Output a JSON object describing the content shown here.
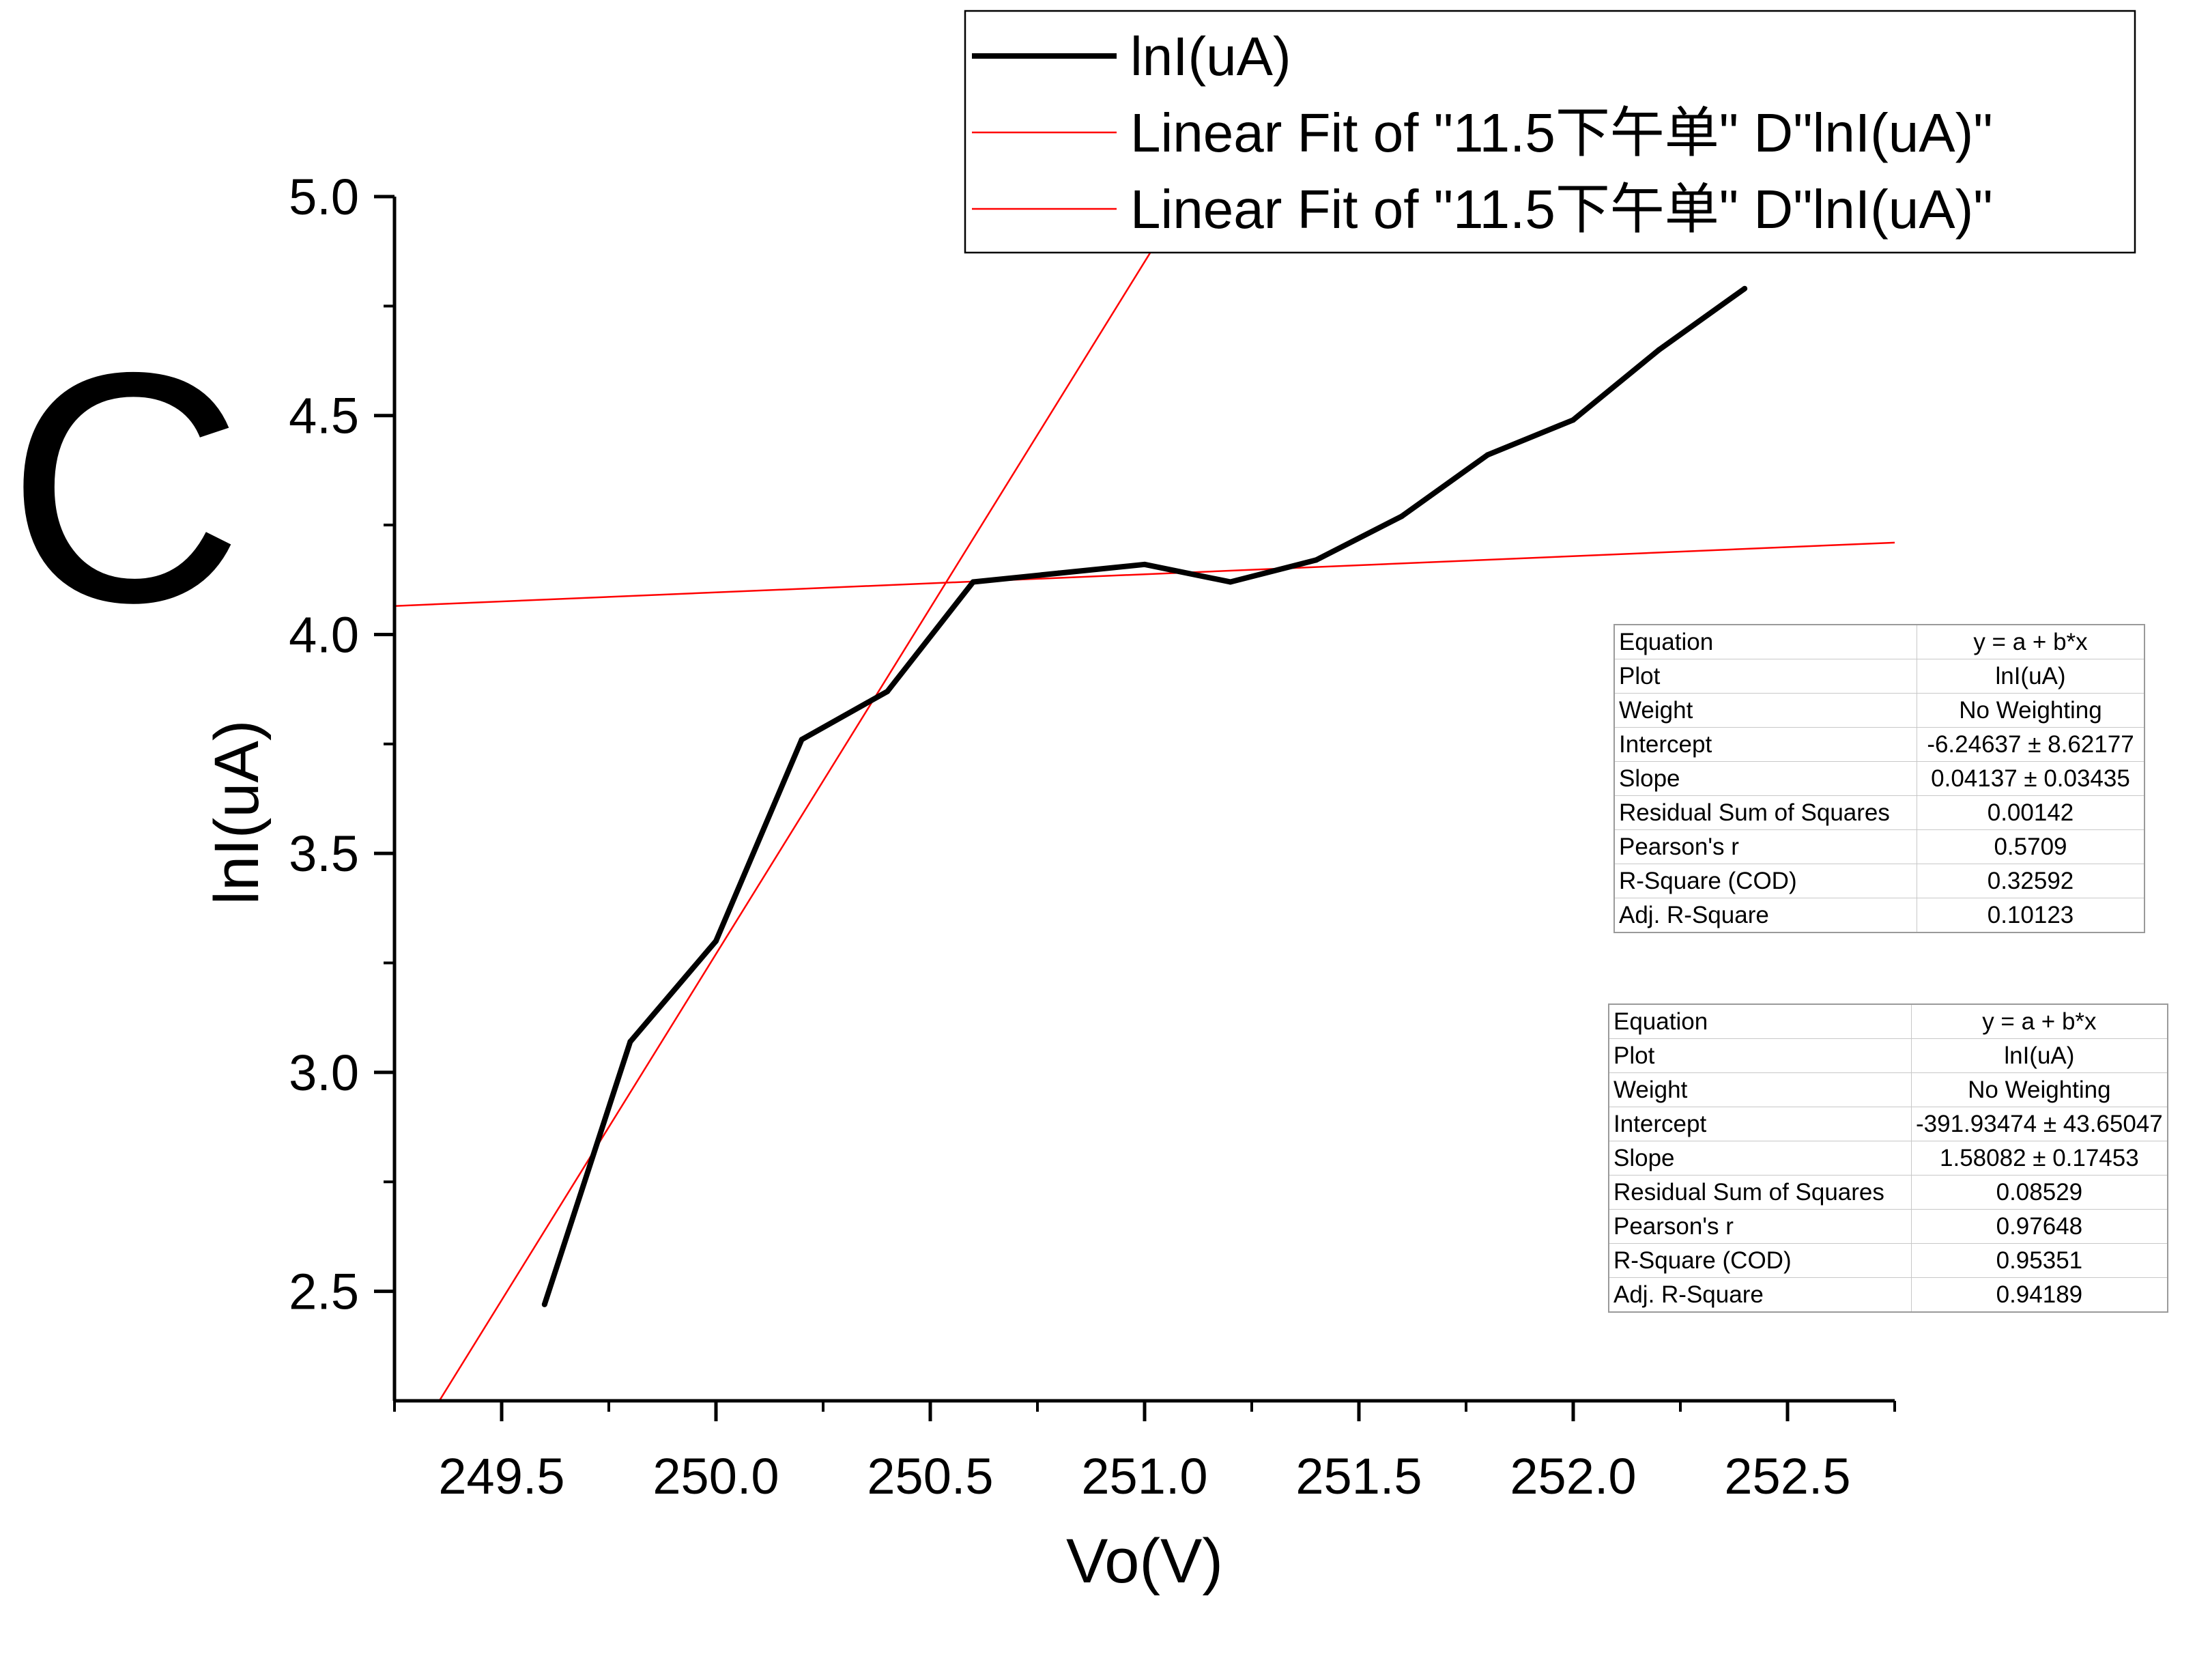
{
  "panel_label": "C",
  "chart_data": {
    "type": "line",
    "title": "",
    "xlabel": "Vo(V)",
    "ylabel": "lnI(uA)",
    "xlim": [
      249.25,
      252.75
    ],
    "ylim": [
      2.25,
      5.0
    ],
    "xticks": [
      249.5,
      250.0,
      250.5,
      251.0,
      251.5,
      252.0,
      252.5
    ],
    "xtick_labels": [
      "249.5",
      "250.0",
      "250.5",
      "251.0",
      "251.5",
      "252.0",
      "252.5"
    ],
    "yticks": [
      2.5,
      3.0,
      3.5,
      4.0,
      4.5,
      5.0
    ],
    "ytick_labels": [
      "2.5",
      "3.0",
      "3.5",
      "4.0",
      "4.5",
      "5.0"
    ],
    "grid": false,
    "legend_position": "top-right",
    "series": [
      {
        "name": "lnI(uA)",
        "color": "#000000",
        "x": [
          249.6,
          249.8,
          250.0,
          250.2,
          250.4,
          250.6,
          250.8,
          251.0,
          251.2,
          251.4,
          251.6,
          251.8,
          252.0,
          252.2,
          252.4
        ],
        "y": [
          2.47,
          3.07,
          3.3,
          3.76,
          3.87,
          4.12,
          4.14,
          4.16,
          4.12,
          4.17,
          4.27,
          4.41,
          4.49,
          4.65,
          4.79
        ]
      }
    ],
    "fits": [
      {
        "legend": "Linear Fit of \"11.5下午单\" D\"lnI(uA)\"",
        "color": "#ff0000",
        "intercept": -6.24637,
        "slope": 0.04137,
        "table": [
          [
            "Equation",
            "y = a + b*x"
          ],
          [
            "Plot",
            "lnI(uA)"
          ],
          [
            "Weight",
            "No Weighting"
          ],
          [
            "Intercept",
            "-6.24637 ± 8.62177"
          ],
          [
            "Slope",
            "0.04137 ± 0.03435"
          ],
          [
            "Residual Sum of Squares",
            "0.00142"
          ],
          [
            "Pearson's r",
            "0.5709"
          ],
          [
            "R-Square (COD)",
            "0.32592"
          ],
          [
            "Adj. R-Square",
            "0.10123"
          ]
        ]
      },
      {
        "legend": "Linear Fit of \"11.5下午单\" D\"lnI(uA)\"",
        "color": "#ff0000",
        "intercept": -391.93474,
        "slope": 1.58082,
        "table": [
          [
            "Equation",
            "y = a + b*x"
          ],
          [
            "Plot",
            "lnI(uA)"
          ],
          [
            "Weight",
            "No Weighting"
          ],
          [
            "Intercept",
            "-391.93474 ± 43.65047"
          ],
          [
            "Slope",
            "1.58082 ± 0.17453"
          ],
          [
            "Residual Sum of Squares",
            "0.08529"
          ],
          [
            "Pearson's r",
            "0.97648"
          ],
          [
            "R-Square (COD)",
            "0.95351"
          ],
          [
            "Adj. R-Square",
            "0.94189"
          ]
        ]
      }
    ]
  }
}
